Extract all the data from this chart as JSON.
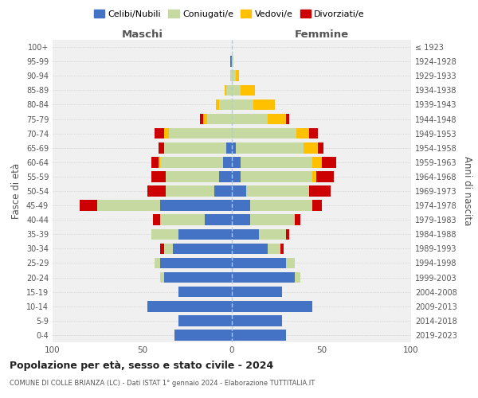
{
  "age_groups": [
    "0-4",
    "5-9",
    "10-14",
    "15-19",
    "20-24",
    "25-29",
    "30-34",
    "35-39",
    "40-44",
    "45-49",
    "50-54",
    "55-59",
    "60-64",
    "65-69",
    "70-74",
    "75-79",
    "80-84",
    "85-89",
    "90-94",
    "95-99",
    "100+"
  ],
  "birth_years": [
    "2019-2023",
    "2014-2018",
    "2009-2013",
    "2004-2008",
    "1999-2003",
    "1994-1998",
    "1989-1993",
    "1984-1988",
    "1979-1983",
    "1974-1978",
    "1969-1973",
    "1964-1968",
    "1959-1963",
    "1954-1958",
    "1949-1953",
    "1944-1948",
    "1939-1943",
    "1934-1938",
    "1929-1933",
    "1924-1928",
    "≤ 1923"
  ],
  "males": {
    "celibi": [
      32,
      30,
      47,
      30,
      38,
      40,
      33,
      30,
      15,
      40,
      10,
      7,
      5,
      3,
      0,
      0,
      0,
      0,
      0,
      1,
      0
    ],
    "coniugati": [
      0,
      0,
      0,
      0,
      2,
      3,
      5,
      15,
      25,
      35,
      27,
      30,
      35,
      35,
      35,
      14,
      7,
      3,
      1,
      0,
      0
    ],
    "vedovi": [
      0,
      0,
      0,
      0,
      0,
      0,
      0,
      0,
      0,
      0,
      0,
      0,
      1,
      0,
      3,
      2,
      2,
      1,
      0,
      0,
      0
    ],
    "divorziati": [
      0,
      0,
      0,
      0,
      0,
      0,
      2,
      0,
      4,
      10,
      10,
      8,
      4,
      3,
      5,
      2,
      0,
      0,
      0,
      0,
      0
    ]
  },
  "females": {
    "nubili": [
      30,
      28,
      45,
      28,
      35,
      30,
      20,
      15,
      10,
      10,
      8,
      5,
      5,
      2,
      0,
      0,
      0,
      0,
      0,
      0,
      0
    ],
    "coniugate": [
      0,
      0,
      0,
      0,
      3,
      5,
      7,
      15,
      25,
      35,
      35,
      40,
      40,
      38,
      36,
      20,
      12,
      5,
      2,
      1,
      0
    ],
    "vedove": [
      0,
      0,
      0,
      0,
      0,
      0,
      0,
      0,
      0,
      0,
      0,
      2,
      5,
      8,
      7,
      10,
      12,
      8,
      2,
      0,
      0
    ],
    "divorziate": [
      0,
      0,
      0,
      0,
      0,
      0,
      2,
      2,
      3,
      5,
      12,
      10,
      8,
      3,
      5,
      2,
      0,
      0,
      0,
      0,
      0
    ]
  },
  "colors": {
    "celibi": "#4472c4",
    "coniugati": "#c6d9a0",
    "vedovi": "#ffc000",
    "divorziati": "#cc0000"
  },
  "xlim": 100,
  "title": "Popolazione per età, sesso e stato civile - 2024",
  "subtitle": "COMUNE DI COLLE BRIANZA (LC) - Dati ISTAT 1° gennaio 2024 - Elaborazione TUTTITALIA.IT",
  "ylabel_left": "Fasce di età",
  "ylabel_right": "Anni di nascita",
  "xlabel_left": "Maschi",
  "xlabel_right": "Femmine",
  "legend_labels": [
    "Celibi/Nubili",
    "Coniugati/e",
    "Vedovi/e",
    "Divorziati/e"
  ],
  "bg_color": "#f0f0f0",
  "grid_color": "#cccccc"
}
